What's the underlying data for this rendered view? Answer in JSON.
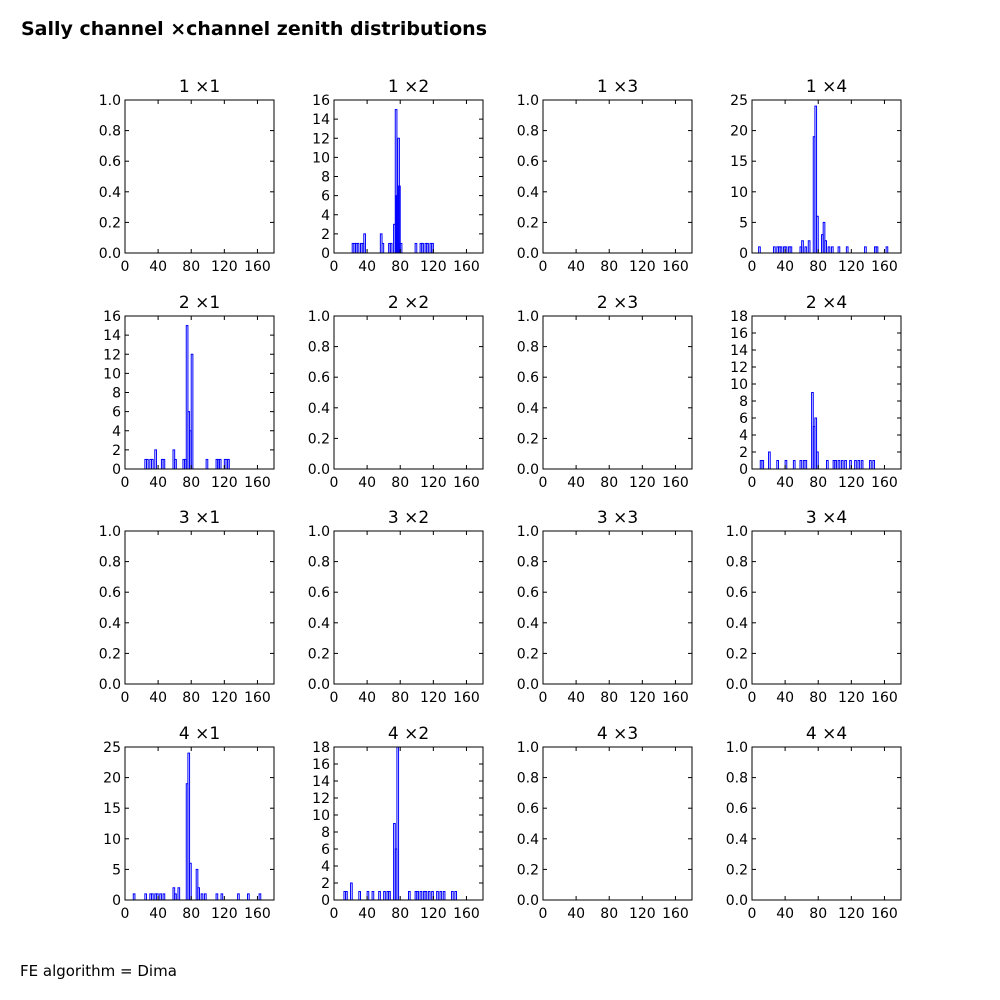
{
  "figure": {
    "title": "Sally channel ×channel zenith distributions",
    "footer": "FE algorithm = Dima"
  },
  "chart_data": [
    {
      "type": "bar",
      "title": "1 ×1",
      "x_ticks": [
        0,
        40,
        80,
        120,
        160
      ],
      "xlim": [
        0,
        180
      ],
      "ylim": [
        0,
        1
      ],
      "y_ticks": [
        "0.0",
        "0.2",
        "0.4",
        "0.6",
        "0.8",
        "1.0"
      ],
      "bins": []
    },
    {
      "type": "bar",
      "title": "1 ×2",
      "x_ticks": [
        0,
        40,
        80,
        120,
        160
      ],
      "xlim": [
        0,
        180
      ],
      "ylim": [
        0,
        16
      ],
      "y_ticks": [
        "0",
        "2",
        "4",
        "6",
        "8",
        "10",
        "12",
        "14",
        "16"
      ],
      "bins": [
        [
          22,
          1
        ],
        [
          24,
          1
        ],
        [
          26,
          1
        ],
        [
          28,
          1
        ],
        [
          32,
          1
        ],
        [
          34,
          1
        ],
        [
          36,
          2
        ],
        [
          56,
          2
        ],
        [
          58,
          1
        ],
        [
          66,
          1
        ],
        [
          68,
          1
        ],
        [
          72,
          3
        ],
        [
          74,
          15
        ],
        [
          75,
          6
        ],
        [
          77,
          12
        ],
        [
          78,
          7
        ],
        [
          80,
          1
        ],
        [
          98,
          1
        ],
        [
          104,
          1
        ],
        [
          106,
          1
        ],
        [
          110,
          1
        ],
        [
          112,
          1
        ],
        [
          116,
          1
        ],
        [
          118,
          1
        ]
      ]
    },
    {
      "type": "bar",
      "title": "1 ×3",
      "x_ticks": [
        0,
        40,
        80,
        120,
        160
      ],
      "xlim": [
        0,
        180
      ],
      "ylim": [
        0,
        1
      ],
      "y_ticks": [
        "0.0",
        "0.2",
        "0.4",
        "0.6",
        "0.8",
        "1.0"
      ],
      "bins": []
    },
    {
      "type": "bar",
      "title": "1 ×4",
      "x_ticks": [
        0,
        40,
        80,
        120,
        160
      ],
      "xlim": [
        0,
        180
      ],
      "ylim": [
        0,
        25
      ],
      "y_ticks": [
        "0",
        "5",
        "10",
        "15",
        "20",
        "25"
      ],
      "bins": [
        [
          8,
          1
        ],
        [
          26,
          1
        ],
        [
          30,
          1
        ],
        [
          32,
          1
        ],
        [
          34,
          1
        ],
        [
          38,
          1
        ],
        [
          40,
          1
        ],
        [
          44,
          1
        ],
        [
          46,
          1
        ],
        [
          58,
          1
        ],
        [
          60,
          2
        ],
        [
          64,
          1
        ],
        [
          68,
          2
        ],
        [
          74,
          19
        ],
        [
          76,
          24
        ],
        [
          78,
          6
        ],
        [
          84,
          3
        ],
        [
          86,
          5
        ],
        [
          88,
          2
        ],
        [
          92,
          1
        ],
        [
          96,
          1
        ],
        [
          104,
          1
        ],
        [
          114,
          1
        ],
        [
          136,
          1
        ],
        [
          148,
          1
        ],
        [
          150,
          1
        ],
        [
          162,
          1
        ]
      ]
    },
    {
      "type": "bar",
      "title": "2 ×1",
      "x_ticks": [
        0,
        40,
        80,
        120,
        160
      ],
      "xlim": [
        0,
        180
      ],
      "ylim": [
        0,
        16
      ],
      "y_ticks": [
        "0",
        "2",
        "4",
        "6",
        "8",
        "10",
        "12",
        "14",
        "16"
      ],
      "bins": [
        [
          24,
          1
        ],
        [
          26,
          1
        ],
        [
          30,
          1
        ],
        [
          32,
          1
        ],
        [
          36,
          2
        ],
        [
          44,
          1
        ],
        [
          46,
          1
        ],
        [
          58,
          2
        ],
        [
          60,
          1
        ],
        [
          70,
          1
        ],
        [
          72,
          1
        ],
        [
          74,
          15
        ],
        [
          76,
          6
        ],
        [
          78,
          4
        ],
        [
          80,
          12
        ],
        [
          98,
          1
        ],
        [
          110,
          1
        ],
        [
          112,
          1
        ],
        [
          114,
          1
        ],
        [
          120,
          1
        ],
        [
          122,
          1
        ],
        [
          124,
          1
        ]
      ]
    },
    {
      "type": "bar",
      "title": "2 ×2",
      "x_ticks": [
        0,
        40,
        80,
        120,
        160
      ],
      "xlim": [
        0,
        180
      ],
      "ylim": [
        0,
        1
      ],
      "y_ticks": [
        "0.0",
        "0.2",
        "0.4",
        "0.6",
        "0.8",
        "1.0"
      ],
      "bins": []
    },
    {
      "type": "bar",
      "title": "2 ×3",
      "x_ticks": [
        0,
        40,
        80,
        120,
        160
      ],
      "xlim": [
        0,
        180
      ],
      "ylim": [
        0,
        1
      ],
      "y_ticks": [
        "0.0",
        "0.2",
        "0.4",
        "0.6",
        "0.8",
        "1.0"
      ],
      "bins": []
    },
    {
      "type": "bar",
      "title": "2 ×4",
      "x_ticks": [
        0,
        40,
        80,
        120,
        160
      ],
      "xlim": [
        0,
        180
      ],
      "ylim": [
        0,
        18
      ],
      "y_ticks": [
        "0",
        "2",
        "4",
        "6",
        "8",
        "10",
        "12",
        "14",
        "16",
        "18"
      ],
      "bins": [
        [
          10,
          1
        ],
        [
          12,
          1
        ],
        [
          20,
          2
        ],
        [
          30,
          1
        ],
        [
          40,
          1
        ],
        [
          50,
          1
        ],
        [
          58,
          1
        ],
        [
          62,
          1
        ],
        [
          64,
          1
        ],
        [
          72,
          9
        ],
        [
          74,
          5
        ],
        [
          76,
          6
        ],
        [
          78,
          2
        ],
        [
          90,
          1
        ],
        [
          98,
          1
        ],
        [
          100,
          1
        ],
        [
          104,
          1
        ],
        [
          108,
          1
        ],
        [
          112,
          1
        ],
        [
          118,
          1
        ],
        [
          124,
          1
        ],
        [
          128,
          1
        ],
        [
          132,
          1
        ],
        [
          142,
          1
        ],
        [
          146,
          1
        ]
      ]
    },
    {
      "type": "bar",
      "title": "3 ×1",
      "x_ticks": [
        0,
        40,
        80,
        120,
        160
      ],
      "xlim": [
        0,
        180
      ],
      "ylim": [
        0,
        1
      ],
      "y_ticks": [
        "0.0",
        "0.2",
        "0.4",
        "0.6",
        "0.8",
        "1.0"
      ],
      "bins": []
    },
    {
      "type": "bar",
      "title": "3 ×2",
      "x_ticks": [
        0,
        40,
        80,
        120,
        160
      ],
      "xlim": [
        0,
        180
      ],
      "ylim": [
        0,
        1
      ],
      "y_ticks": [
        "0.0",
        "0.2",
        "0.4",
        "0.6",
        "0.8",
        "1.0"
      ],
      "bins": []
    },
    {
      "type": "bar",
      "title": "3 ×3",
      "x_ticks": [
        0,
        40,
        80,
        120,
        160
      ],
      "xlim": [
        0,
        180
      ],
      "ylim": [
        0,
        1
      ],
      "y_ticks": [
        "0.0",
        "0.2",
        "0.4",
        "0.6",
        "0.8",
        "1.0"
      ],
      "bins": []
    },
    {
      "type": "bar",
      "title": "3 ×4",
      "x_ticks": [
        0,
        40,
        80,
        120,
        160
      ],
      "xlim": [
        0,
        180
      ],
      "ylim": [
        0,
        1
      ],
      "y_ticks": [
        "0.0",
        "0.2",
        "0.4",
        "0.6",
        "0.8",
        "1.0"
      ],
      "bins": []
    },
    {
      "type": "bar",
      "title": "4 ×1",
      "x_ticks": [
        0,
        40,
        80,
        120,
        160
      ],
      "xlim": [
        0,
        180
      ],
      "ylim": [
        0,
        25
      ],
      "y_ticks": [
        "0",
        "5",
        "10",
        "15",
        "20",
        "25"
      ],
      "bins": [
        [
          10,
          1
        ],
        [
          24,
          1
        ],
        [
          30,
          1
        ],
        [
          32,
          1
        ],
        [
          36,
          1
        ],
        [
          38,
          1
        ],
        [
          42,
          1
        ],
        [
          46,
          1
        ],
        [
          58,
          2
        ],
        [
          60,
          1
        ],
        [
          64,
          2
        ],
        [
          74,
          19
        ],
        [
          76,
          24
        ],
        [
          78,
          6
        ],
        [
          86,
          5
        ],
        [
          88,
          2
        ],
        [
          92,
          1
        ],
        [
          96,
          1
        ],
        [
          110,
          1
        ],
        [
          116,
          1
        ],
        [
          136,
          1
        ],
        [
          148,
          1
        ],
        [
          162,
          1
        ]
      ]
    },
    {
      "type": "bar",
      "title": "4 ×2",
      "x_ticks": [
        0,
        40,
        80,
        120,
        160
      ],
      "xlim": [
        0,
        180
      ],
      "ylim": [
        0,
        18
      ],
      "y_ticks": [
        "0",
        "2",
        "4",
        "6",
        "8",
        "10",
        "12",
        "14",
        "16",
        "18"
      ],
      "bins": [
        [
          12,
          1
        ],
        [
          14,
          1
        ],
        [
          20,
          2
        ],
        [
          30,
          1
        ],
        [
          40,
          1
        ],
        [
          46,
          1
        ],
        [
          54,
          1
        ],
        [
          60,
          1
        ],
        [
          64,
          1
        ],
        [
          66,
          1
        ],
        [
          72,
          9
        ],
        [
          74,
          6
        ],
        [
          76,
          18
        ],
        [
          90,
          1
        ],
        [
          98,
          1
        ],
        [
          100,
          1
        ],
        [
          104,
          1
        ],
        [
          108,
          1
        ],
        [
          110,
          1
        ],
        [
          114,
          1
        ],
        [
          118,
          1
        ],
        [
          124,
          1
        ],
        [
          128,
          1
        ],
        [
          132,
          1
        ],
        [
          142,
          1
        ],
        [
          146,
          1
        ]
      ]
    },
    {
      "type": "bar",
      "title": "4 ×3",
      "x_ticks": [
        0,
        40,
        80,
        120,
        160
      ],
      "xlim": [
        0,
        180
      ],
      "ylim": [
        0,
        1
      ],
      "y_ticks": [
        "0.0",
        "0.2",
        "0.4",
        "0.6",
        "0.8",
        "1.0"
      ],
      "bins": []
    },
    {
      "type": "bar",
      "title": "4 ×4",
      "x_ticks": [
        0,
        40,
        80,
        120,
        160
      ],
      "xlim": [
        0,
        180
      ],
      "ylim": [
        0,
        1
      ],
      "y_ticks": [
        "0.0",
        "0.2",
        "0.4",
        "0.6",
        "0.8",
        "1.0"
      ],
      "bins": []
    }
  ],
  "style": {
    "bar_color": "#0000ff",
    "axes_color": "#000000"
  }
}
